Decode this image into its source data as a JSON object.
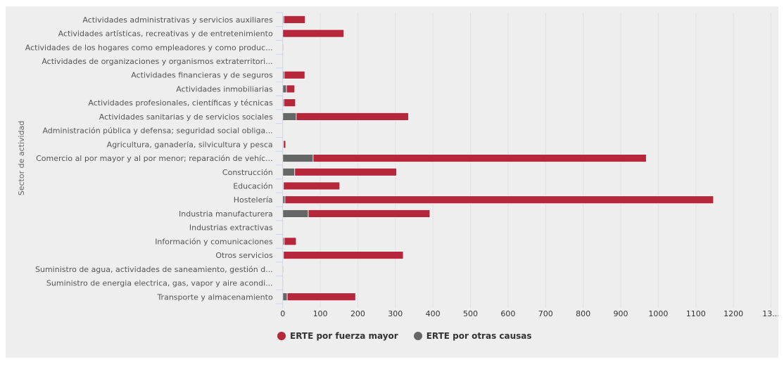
{
  "chart_data": {
    "type": "bar",
    "orientation": "horizontal",
    "stacked": true,
    "title": "",
    "xlabel": "",
    "ylabel": "Sector de actividad",
    "xlim": [
      0,
      1300
    ],
    "x_ticks": [
      "0",
      "100",
      "200",
      "300",
      "400",
      "500",
      "600",
      "700",
      "800",
      "900",
      "1000",
      "1100",
      "1200",
      "13..."
    ],
    "grid": true,
    "legend_position": "bottom-center",
    "categories": [
      "Actividades administrativas y servicios auxiliares",
      "Actividades artísticas, recreativas y de entretenimiento",
      "Actividades de los hogares como empleadores y como produc...",
      "Actividades de organizaciones y organismos extraterritori...",
      "Actividades financieras y de seguros",
      "Actividades inmobiliarias",
      "Actividades profesionales, científicas y técnicas",
      "Actividades sanitarias y de servicios sociales",
      "Administración pública y defensa; seguridad social obliga...",
      "Agricultura, ganadería, silvicultura y pesca",
      "Comercio al por mayor y al por menor; reparación de vehíc...",
      "Construcción",
      "Educación",
      "Hostelería",
      "Industria manufacturera",
      "Industrias extractivas",
      "Información y comunicaciones",
      "Otros servicios",
      "Suministro de agua, actividades de saneamiento, gestión d...",
      "Suministro de energia electrica, gas, vapor y aire acondi...",
      "Transporte y almacenamiento"
    ],
    "series": [
      {
        "name": "ERTE por otras causas",
        "color": "#666666",
        "values": [
          3,
          0,
          0,
          0,
          4,
          10,
          3,
          36,
          0,
          2,
          81,
          32,
          2,
          6,
          68,
          0,
          4,
          2,
          0,
          0,
          12
        ]
      },
      {
        "name": "ERTE por fuerza mayor",
        "color": "#b7273c",
        "values": [
          57,
          163,
          2,
          0,
          55,
          22,
          31,
          299,
          0,
          6,
          887,
          271,
          150,
          1141,
          324,
          0,
          32,
          319,
          2,
          1,
          182
        ]
      }
    ]
  },
  "legend": [
    {
      "label": "ERTE por fuerza mayor",
      "color": "#b7273c"
    },
    {
      "label": "ERTE por otras causas",
      "color": "#666666"
    }
  ]
}
